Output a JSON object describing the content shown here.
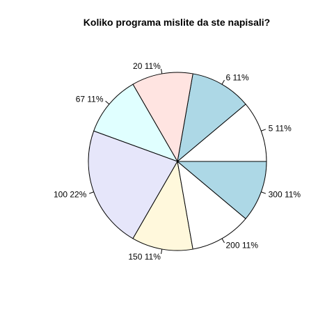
{
  "chart_data": {
    "type": "pie",
    "title": "Koliko programa mislite da ste napisali?",
    "direction": "counterclockwise",
    "start": "3 o'clock",
    "slices": [
      {
        "label": "5 11%",
        "value": 11,
        "color": "#ffffff"
      },
      {
        "label": "6 11%",
        "value": 11,
        "color": "#add8e6"
      },
      {
        "label": "20 11%",
        "value": 11,
        "color": "#ffe4e1"
      },
      {
        "label": "67 11%",
        "value": 11,
        "color": "#e0ffff"
      },
      {
        "label": "100 22%",
        "value": 22,
        "color": "#e6e6fa"
      },
      {
        "label": "150 11%",
        "value": 11,
        "color": "#fff8dc"
      },
      {
        "label": "200 11%",
        "value": 11,
        "color": "#ffffff"
      },
      {
        "label": "300 11%",
        "value": 11,
        "color": "#add8e6"
      }
    ]
  }
}
